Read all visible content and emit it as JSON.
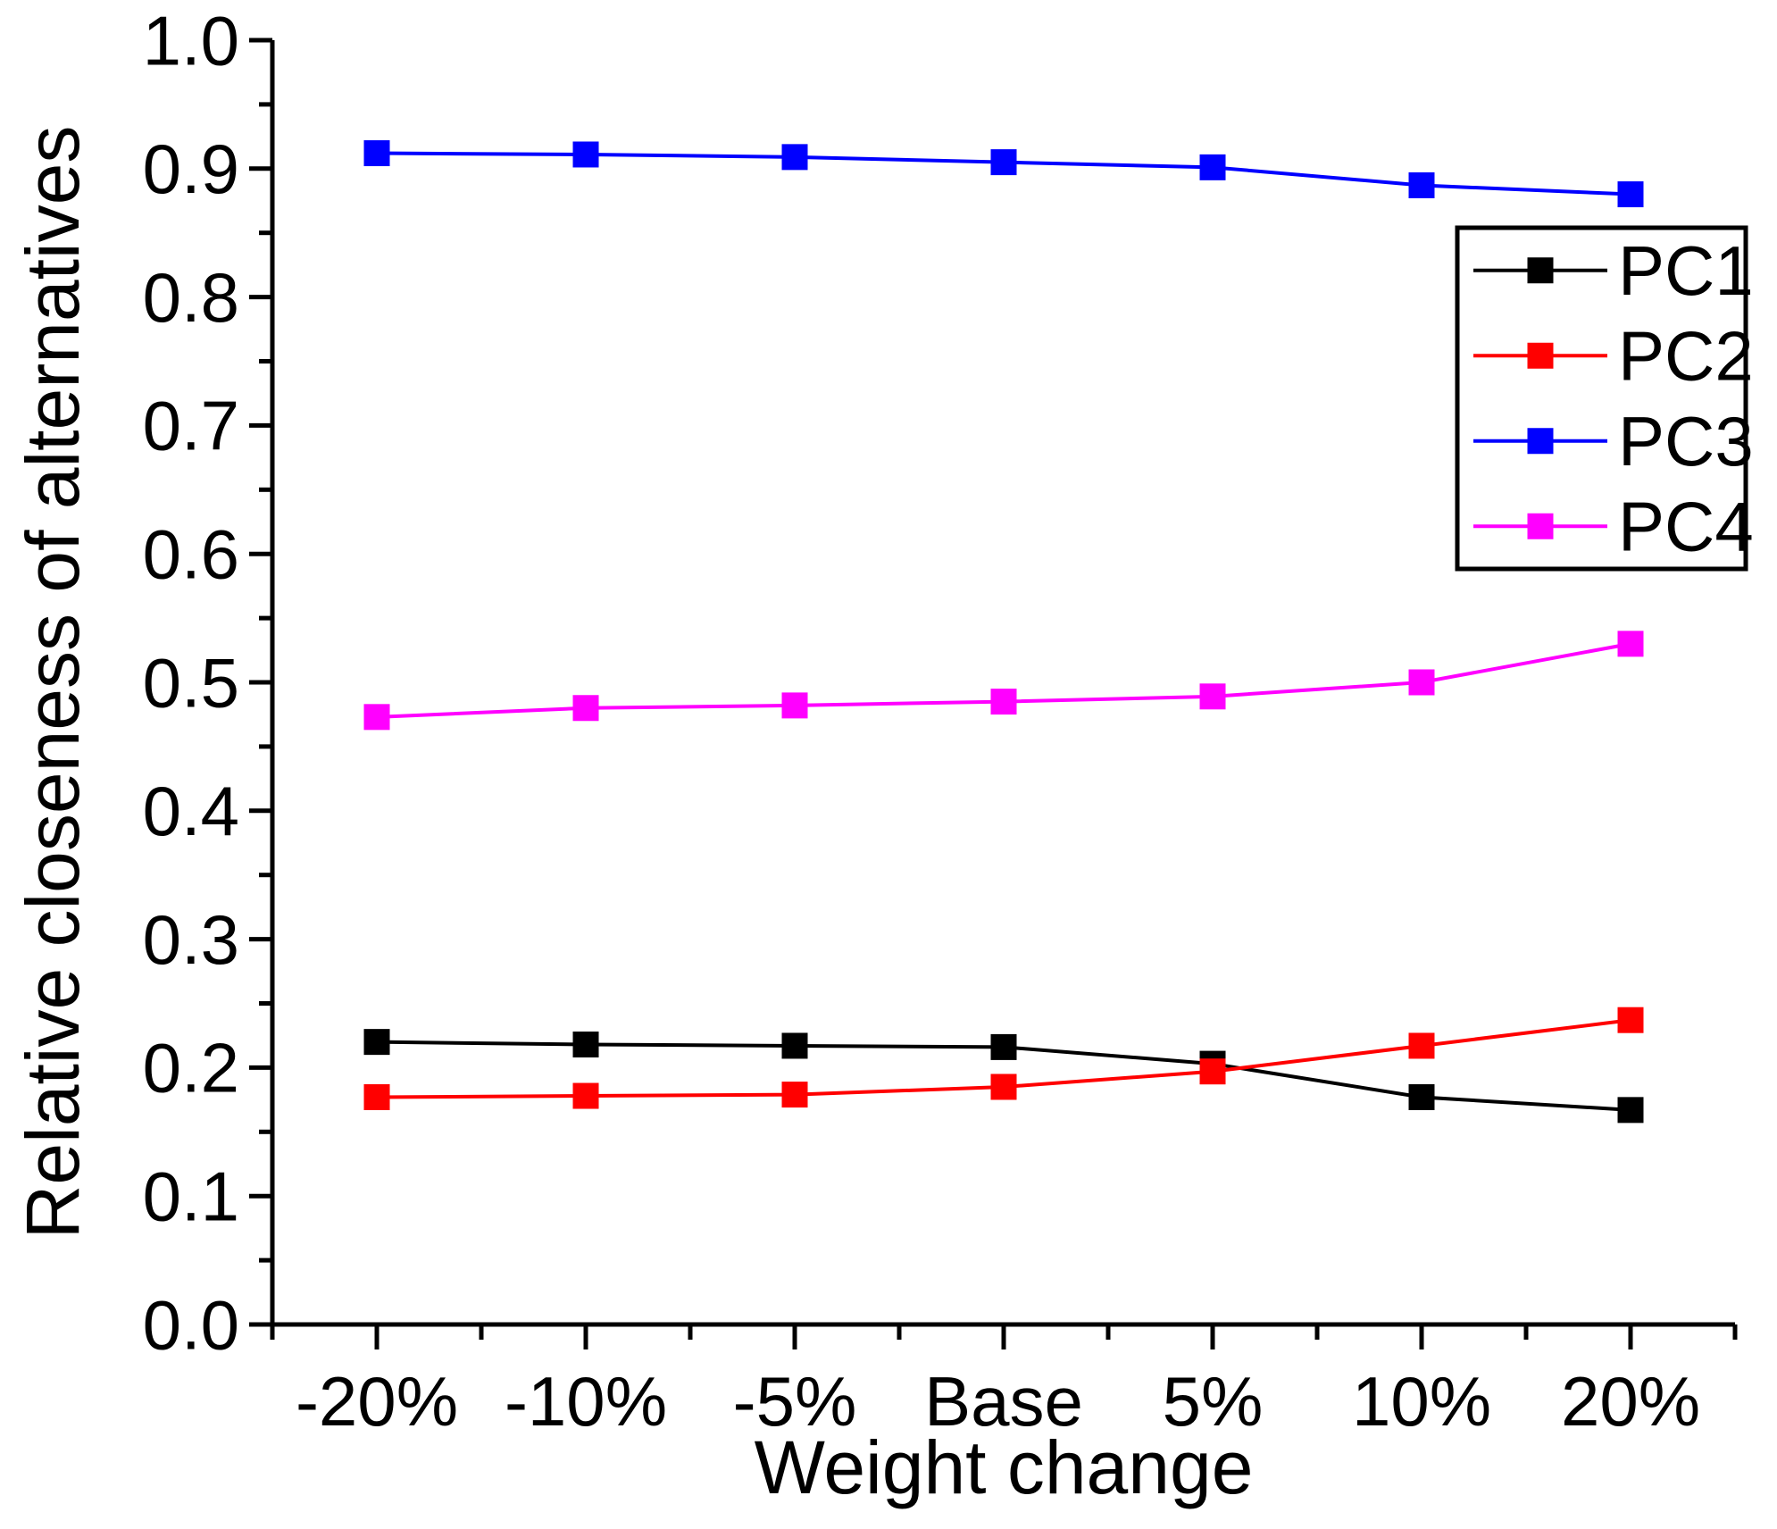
{
  "chart_data": {
    "type": "line",
    "title": "",
    "xlabel": "Weight change",
    "ylabel": "Relative closeness of alternatives",
    "categories": [
      "-20%",
      "-10%",
      "-5%",
      "Base",
      "5%",
      "10%",
      "20%"
    ],
    "series": [
      {
        "name": "PC1",
        "color": "#000000",
        "marker": "square",
        "values": [
          0.22,
          0.218,
          0.217,
          0.216,
          0.203,
          0.177,
          0.167
        ]
      },
      {
        "name": "PC2",
        "color": "#FF0000",
        "marker": "square",
        "values": [
          0.177,
          0.178,
          0.179,
          0.185,
          0.197,
          0.217,
          0.237
        ]
      },
      {
        "name": "PC3",
        "color": "#0000FF",
        "marker": "square",
        "values": [
          0.912,
          0.911,
          0.909,
          0.905,
          0.901,
          0.887,
          0.88
        ]
      },
      {
        "name": "PC4",
        "color": "#FF00FF",
        "marker": "square",
        "values": [
          0.473,
          0.48,
          0.482,
          0.485,
          0.489,
          0.5,
          0.53
        ]
      }
    ],
    "ylim": [
      0.0,
      1.0
    ],
    "ytick_step": 0.1,
    "ytick_minor_step": 0.05,
    "yticklabels": [
      "0.0",
      "0.1",
      "0.2",
      "0.3",
      "0.4",
      "0.5",
      "0.6",
      "0.7",
      "0.8",
      "0.9",
      "1.0"
    ],
    "legend": {
      "position": "upper-right",
      "entries": [
        "PC1",
        "PC2",
        "PC3",
        "PC4"
      ]
    },
    "grid": false,
    "axis_color": "#000000",
    "background_color": "#FFFFFF"
  }
}
